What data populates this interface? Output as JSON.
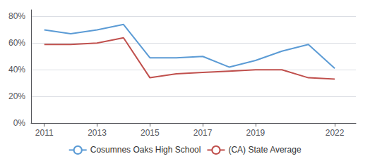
{
  "chart_data": {
    "type": "line",
    "x": [
      2011,
      2012,
      2013,
      2014,
      2015,
      2016,
      2017,
      2018,
      2019,
      2020,
      2021,
      2022
    ],
    "series": [
      {
        "name": "Cosumnes Oaks High School",
        "color": "#5b9bd5",
        "values": [
          0.7,
          0.67,
          0.7,
          0.74,
          0.49,
          0.49,
          0.5,
          0.42,
          0.47,
          0.54,
          0.59,
          0.41
        ]
      },
      {
        "name": "(CA) State Average",
        "color": "#c0504d",
        "values": [
          0.59,
          0.59,
          0.6,
          0.64,
          0.34,
          0.37,
          0.38,
          0.39,
          0.4,
          0.4,
          0.34,
          0.33
        ]
      }
    ],
    "xlim": [
      2010.5,
      2022.8
    ],
    "xticks": [
      2011,
      2013,
      2015,
      2017,
      2019,
      2022
    ],
    "ylim": [
      0.0,
      0.85
    ],
    "yticks": [
      {
        "value": 0.0,
        "label": "0%"
      },
      {
        "value": 0.2,
        "label": "20%"
      },
      {
        "value": 0.4,
        "label": "40%"
      },
      {
        "value": 0.6,
        "label": "60%"
      },
      {
        "value": 0.8,
        "label": "80%"
      }
    ],
    "grid": true,
    "legend": "bottom"
  }
}
